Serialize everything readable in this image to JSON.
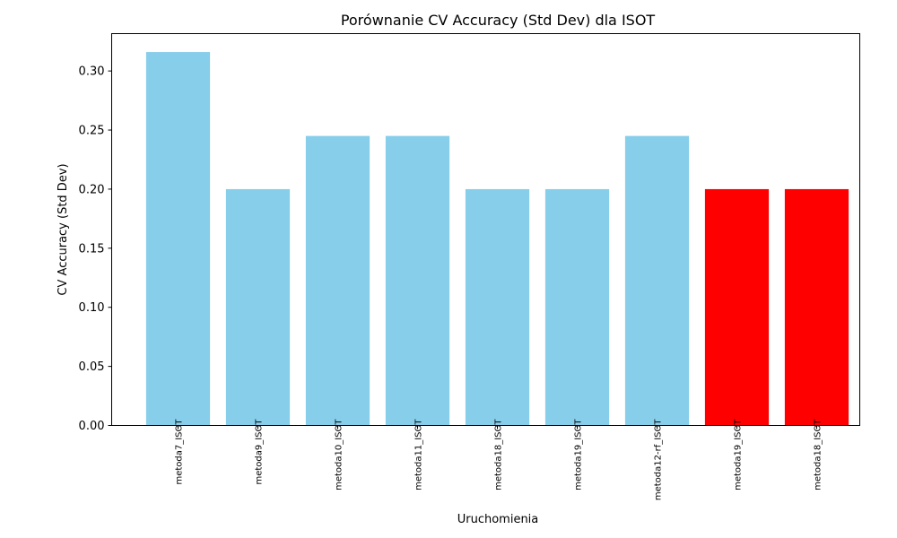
{
  "chart_data": {
    "type": "bar",
    "title": "Porównanie CV Accuracy (Std Dev) dla ISOT",
    "xlabel": "Uruchomienia",
    "ylabel": "CV Accuracy (Std Dev)",
    "categories": [
      "metoda7_ISOT",
      "metoda9_ISOT",
      "metoda10_ISOT",
      "metoda11_ISOT",
      "metoda18_ISOT",
      "metoda19_ISOT",
      "metoda12-rf_ISOT",
      "metoda19_ISOT",
      "metoda18_ISOT"
    ],
    "values": [
      0.316,
      0.2,
      0.245,
      0.245,
      0.2,
      0.2,
      0.245,
      0.2,
      0.2
    ],
    "bar_colors": [
      "#87ceeb",
      "#87ceeb",
      "#87ceeb",
      "#87ceeb",
      "#87ceeb",
      "#87ceeb",
      "#87ceeb",
      "#ff0000",
      "#ff0000"
    ],
    "yticks": [
      "0.00",
      "0.05",
      "0.10",
      "0.15",
      "0.20",
      "0.25",
      "0.30"
    ],
    "ylim": [
      0,
      0.3316
    ],
    "grid": false,
    "legend": false
  }
}
